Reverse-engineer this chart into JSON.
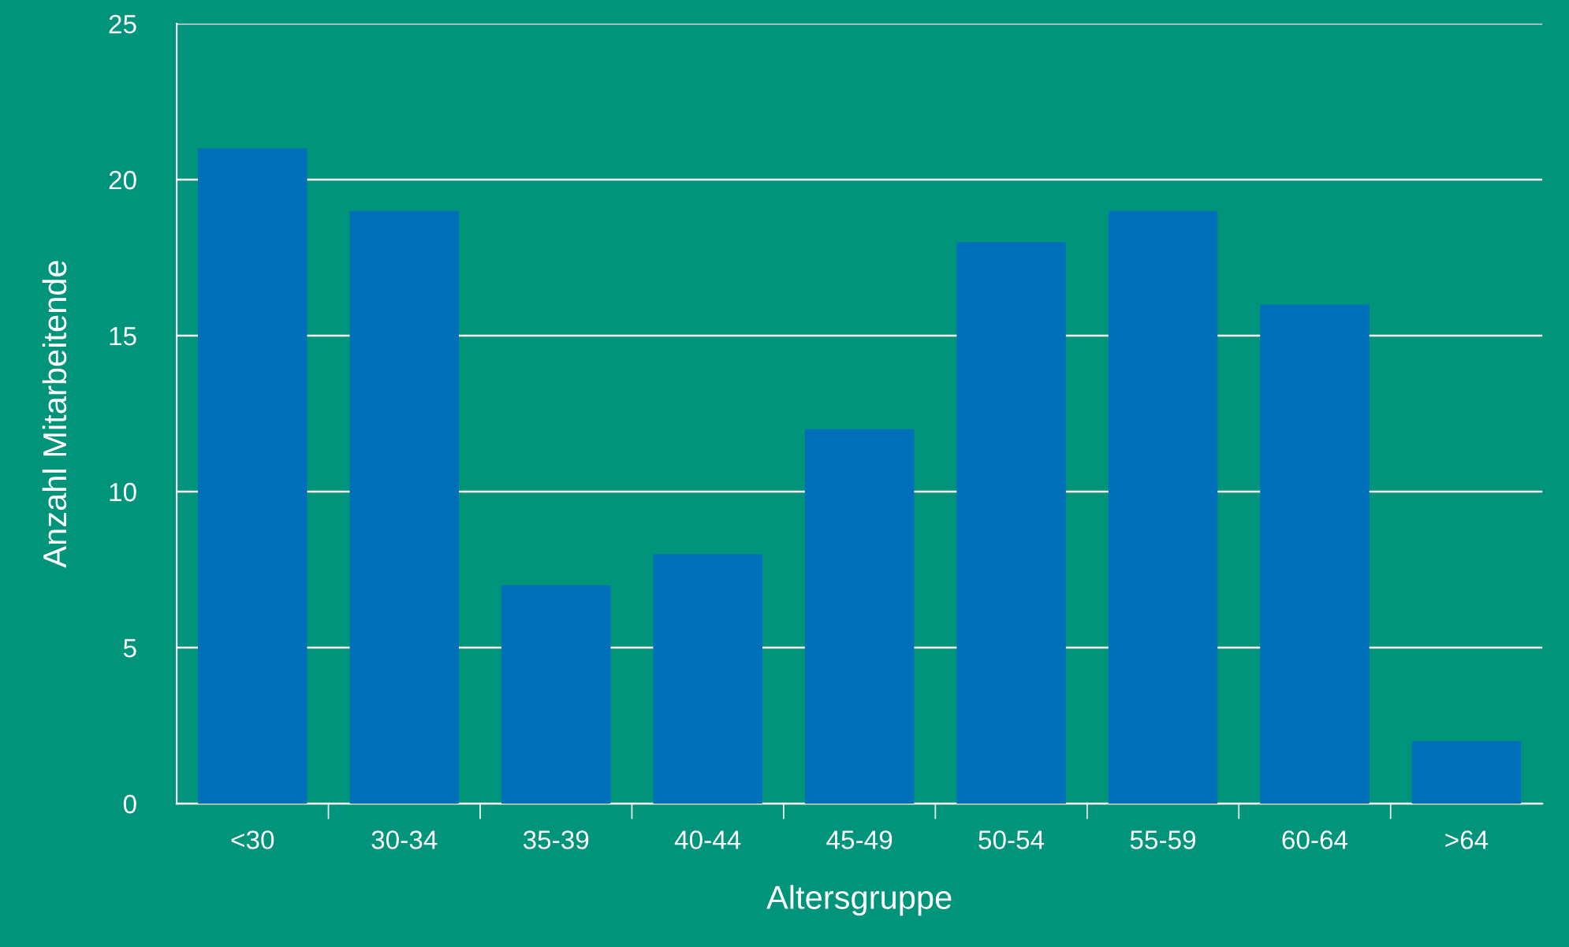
{
  "chart_data": {
    "type": "bar",
    "xlabel": "Altersgruppe",
    "ylabel": "Anzahl Mitarbeitende",
    "categories": [
      "<30",
      "30-34",
      "35-39",
      "40-44",
      "45-49",
      "50-54",
      "55-59",
      "60-64",
      ">64"
    ],
    "values": [
      21,
      19,
      7,
      8,
      12,
      18,
      19,
      16,
      2
    ],
    "color": "#006fba",
    "ylim": [
      0,
      25
    ],
    "yticks": [
      0,
      5,
      10,
      15,
      20,
      25
    ],
    "grid": "y",
    "legend": false
  }
}
